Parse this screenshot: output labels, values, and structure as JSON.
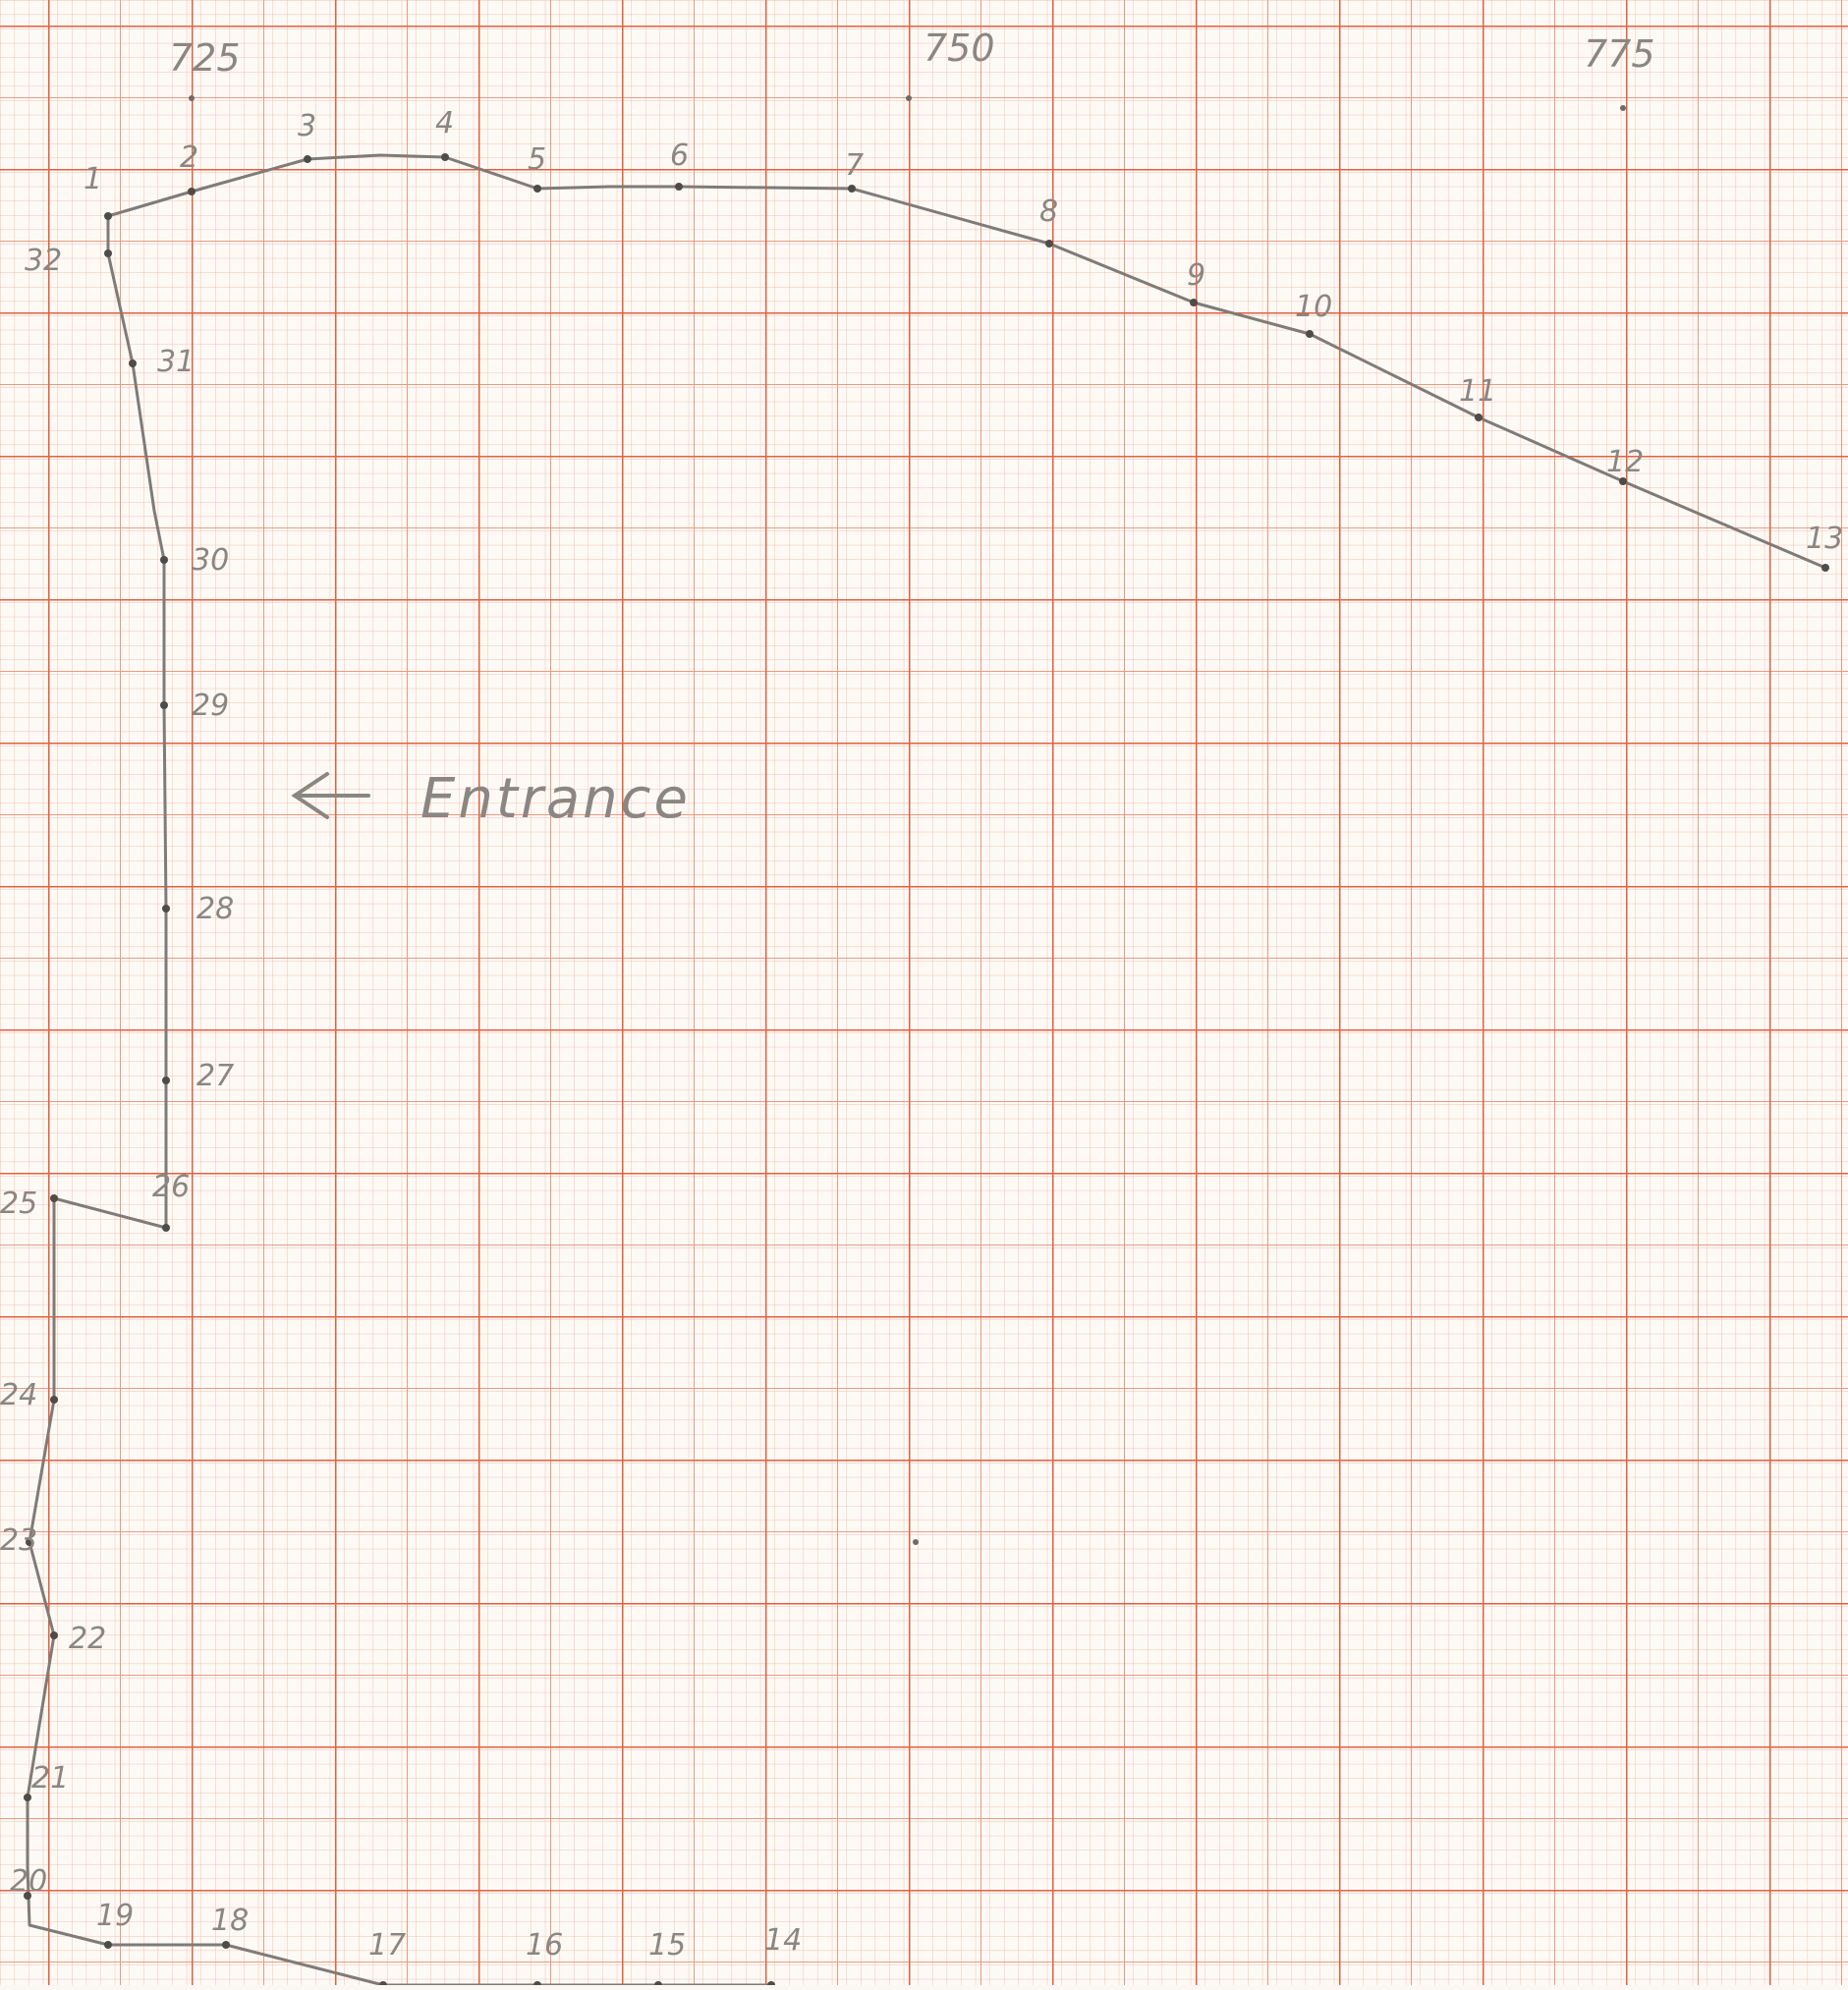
{
  "sheet": {
    "grid_colors": {
      "fine": "#f0b8a6",
      "medium": "#ec9a80",
      "major": "#e4563a"
    },
    "pencil_color": "#8b8682"
  },
  "axis": {
    "labels": [
      "725",
      "750",
      "775"
    ]
  },
  "annotation": {
    "arrow_icon": "left-arrow-icon",
    "text": "Entrance"
  },
  "points": [
    {
      "n": "1"
    },
    {
      "n": "2"
    },
    {
      "n": "3"
    },
    {
      "n": "4"
    },
    {
      "n": "5"
    },
    {
      "n": "6"
    },
    {
      "n": "7"
    },
    {
      "n": "8"
    },
    {
      "n": "9"
    },
    {
      "n": "10"
    },
    {
      "n": "11"
    },
    {
      "n": "12"
    },
    {
      "n": "13"
    },
    {
      "n": "14"
    },
    {
      "n": "15"
    },
    {
      "n": "16"
    },
    {
      "n": "17"
    },
    {
      "n": "18"
    },
    {
      "n": "19"
    },
    {
      "n": "20"
    },
    {
      "n": "21"
    },
    {
      "n": "22"
    },
    {
      "n": "23"
    },
    {
      "n": "24"
    },
    {
      "n": "25"
    },
    {
      "n": "26"
    },
    {
      "n": "27"
    },
    {
      "n": "28"
    },
    {
      "n": "29"
    },
    {
      "n": "30"
    },
    {
      "n": "31"
    },
    {
      "n": "32"
    }
  ]
}
